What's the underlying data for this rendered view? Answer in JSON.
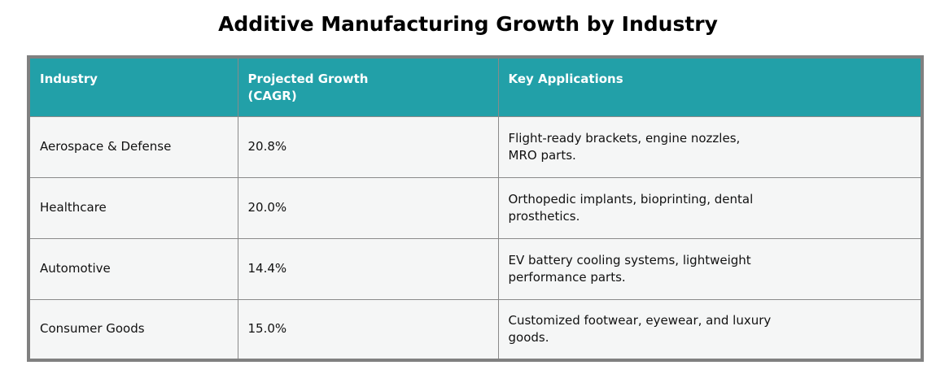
{
  "title": "Additive Manufacturing Growth by Industry",
  "chart_data": {
    "type": "table",
    "title": "Additive Manufacturing Growth by Industry",
    "columns": [
      "Industry",
      "Projected Growth\n(CAGR)",
      "Key Applications"
    ],
    "rows": [
      {
        "industry": "Aerospace & Defense",
        "growth": "20.8%",
        "applications": "Flight-ready brackets, engine nozzles,\nMRO parts."
      },
      {
        "industry": "Healthcare",
        "growth": "20.0%",
        "applications": "Orthopedic implants, bioprinting, dental\nprosthetics."
      },
      {
        "industry": "Automotive",
        "growth": "14.4%",
        "applications": "EV battery cooling systems, lightweight\nperformance parts."
      },
      {
        "industry": "Consumer Goods",
        "growth": "15.0%",
        "applications": "Customized footwear, eyewear, and luxury\ngoods."
      }
    ],
    "growth_values_pct": [
      20.8,
      20.0,
      14.4,
      15.0
    ],
    "colors": {
      "header_bg": "#22a0a8",
      "header_text": "#ffffff",
      "row_bg": "#f5f6f6",
      "body_text": "#111111",
      "outer_border": "#808080",
      "inner_border": "#8a8a8a"
    }
  }
}
